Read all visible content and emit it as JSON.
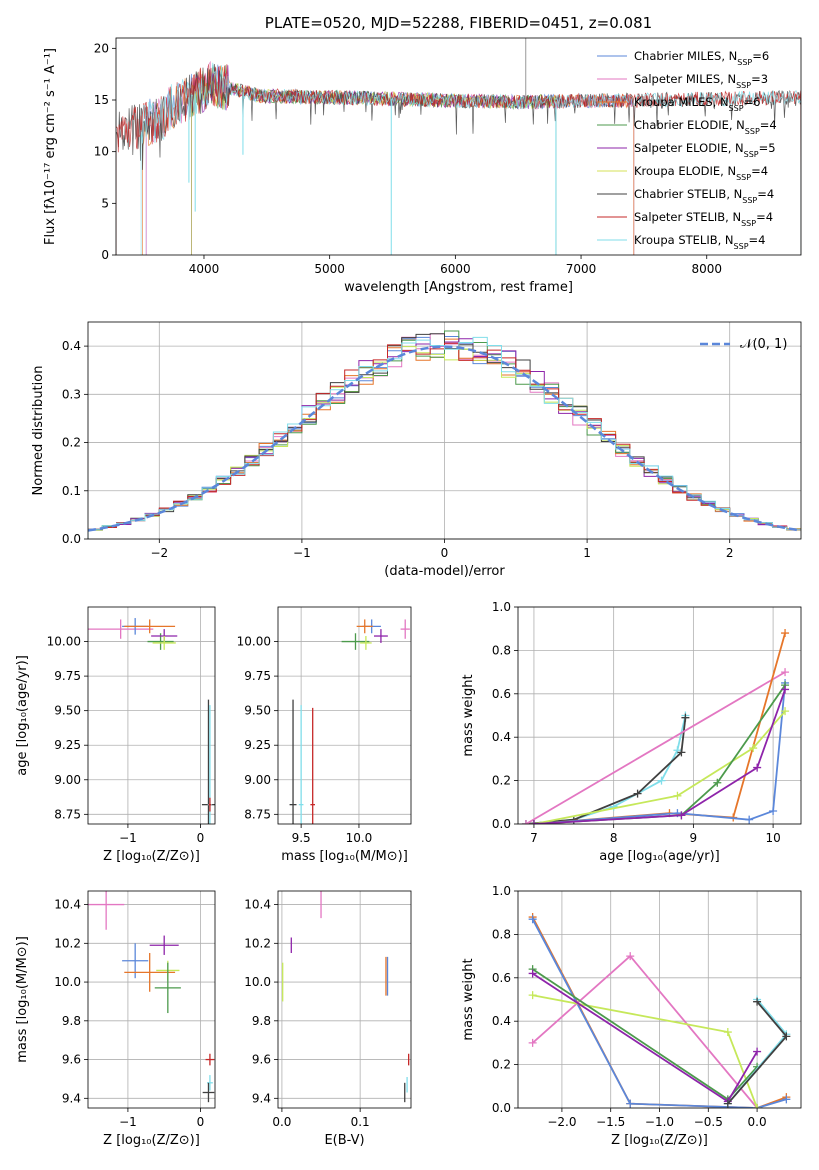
{
  "colors": {
    "chabrier_miles": "#5b87da",
    "salpeter_miles": "#e377c2",
    "kroupa_miles": "#2e8b57",
    "chabrier_elodie": "#4c9a4c",
    "salpeter_elodie": "#8e24aa",
    "kroupa_elodie": "#d4e157",
    "chabrier_stelib": "#404040",
    "salpeter_stelib": "#c62828",
    "kroupa_stelib": "#80deea",
    "orange": "#e6762a",
    "lime": "#c6e85a",
    "gaussian": "#5b87da"
  },
  "chart_data": [
    {
      "type": "line",
      "title": "PLATE=0520, MJD=52288, FIBERID=0451, z=0.081",
      "xlabel": "wavelength [Angstrom, rest frame]",
      "ylabel": "Flux [fλ10⁻¹⁷ erg cm⁻² s⁻¹ A⁻¹]",
      "xlim": [
        3300,
        8750
      ],
      "ylim": [
        0,
        21
      ],
      "xticks": [
        "4000",
        "5000",
        "6000",
        "7000",
        "8000"
      ],
      "yticks": [
        "0",
        "5",
        "10",
        "15",
        "20"
      ],
      "legend_position": "top-right",
      "series": [
        {
          "name": "Chabrier MILES, N_SSP=6",
          "key": "chabrier_miles",
          "range": [
            3540,
            7420
          ]
        },
        {
          "name": "Salpeter MILES, N_SSP=3",
          "key": "salpeter_miles",
          "range": [
            3540,
            7420
          ]
        },
        {
          "name": "Kroupa MILES, N_SSP=6",
          "key": "orange",
          "range": [
            3510,
            7420
          ]
        },
        {
          "name": "Chabrier ELODIE, N_SSP=4",
          "key": "chabrier_elodie",
          "range": [
            3900,
            6800
          ]
        },
        {
          "name": "Salpeter ELODIE, N_SSP=5",
          "key": "salpeter_elodie",
          "range": [
            3900,
            6800
          ]
        },
        {
          "name": "Kroupa ELODIE, N_SSP=4",
          "key": "kroupa_elodie",
          "range": [
            3900,
            6800
          ]
        },
        {
          "name": "Chabrier STELIB, N_SSP=4",
          "key": "chabrier_stelib",
          "range": [
            3200,
            8750
          ]
        },
        {
          "name": "Salpeter STELIB, N_SSP=4",
          "key": "salpeter_stelib",
          "range": [
            3300,
            8750
          ]
        },
        {
          "name": "Kroupa STELIB, N_SSP=4",
          "key": "kroupa_stelib",
          "range": [
            3500,
            8750
          ]
        }
      ]
    },
    {
      "type": "line",
      "xlabel": "(data-model)/error",
      "ylabel": "Normed distribution",
      "xlim": [
        -2.5,
        2.5
      ],
      "ylim": [
        0,
        0.45
      ],
      "xticks": [
        "−2",
        "−1",
        "0",
        "1",
        "2"
      ],
      "yticks": [
        "0.0",
        "0.1",
        "0.2",
        "0.3",
        "0.4"
      ],
      "grid": true,
      "legend_position": "top-right",
      "gaussian_label": "𝒩(0, 1)"
    },
    {
      "type": "scatter",
      "xlabel": "Z [log₁₀(Z/Z⊙)]",
      "ylabel": "age  [log₁₀(age/yr)]",
      "xlim": [
        -1.55,
        0.2
      ],
      "ylim": [
        8.68,
        10.25
      ],
      "xticks": [
        "−1",
        "0"
      ],
      "yticks": [
        "8.75",
        "9.00",
        "9.25",
        "9.50",
        "9.75",
        "10.00"
      ],
      "grid": true,
      "points": [
        {
          "key": "salpeter_miles",
          "x": -1.1,
          "y": 10.09,
          "xerr": 0.45,
          "yerr": 0.07
        },
        {
          "key": "chabrier_miles",
          "x": -0.9,
          "y": 10.11,
          "xerr": 0.18,
          "yerr": 0.06
        },
        {
          "key": "orange",
          "x": -0.7,
          "y": 10.11,
          "xerr": 0.35,
          "yerr": 0.05
        },
        {
          "key": "chabrier_elodie",
          "x": -0.55,
          "y": 10.0,
          "xerr": 0.18,
          "yerr": 0.06
        },
        {
          "key": "salpeter_elodie",
          "x": -0.5,
          "y": 10.04,
          "xerr": 0.18,
          "yerr": 0.05
        },
        {
          "key": "lime",
          "x": -0.5,
          "y": 9.99,
          "xerr": 0.16,
          "yerr": 0.05
        },
        {
          "key": "chabrier_stelib",
          "x": 0.11,
          "y": 8.82,
          "xerr": 0.09,
          "yerr": 0.76
        },
        {
          "key": "kroupa_stelib",
          "x": 0.13,
          "y": 8.82,
          "xerr": 0.03,
          "yerr": 0.72
        },
        {
          "key": "salpeter_stelib",
          "x": 0.13,
          "y": 8.82,
          "xerr": 0.02,
          "yerr": 0.05
        }
      ]
    },
    {
      "type": "scatter",
      "xlabel": "mass [log₁₀(M/M⊙)]",
      "ylabel": "",
      "xlim": [
        9.3,
        10.45
      ],
      "ylim": [
        8.68,
        10.25
      ],
      "xticks": [
        "9.5",
        "10.0"
      ],
      "yticks": [
        "8.75",
        "9.00",
        "9.25",
        "9.50",
        "9.75",
        "10.00"
      ],
      "grid": true,
      "points": [
        {
          "key": "salpeter_miles",
          "x": 10.4,
          "y": 10.09,
          "xerr": 0.04,
          "yerr": 0.07
        },
        {
          "key": "chabrier_miles",
          "x": 10.11,
          "y": 10.11,
          "xerr": 0.08,
          "yerr": 0.05
        },
        {
          "key": "orange",
          "x": 10.05,
          "y": 10.11,
          "xerr": 0.07,
          "yerr": 0.05
        },
        {
          "key": "chabrier_elodie",
          "x": 9.97,
          "y": 10.0,
          "xerr": 0.12,
          "yerr": 0.06
        },
        {
          "key": "salpeter_elodie",
          "x": 10.19,
          "y": 10.04,
          "xerr": 0.06,
          "yerr": 0.05
        },
        {
          "key": "lime",
          "x": 10.06,
          "y": 9.99,
          "xerr": 0.05,
          "yerr": 0.05
        },
        {
          "key": "chabrier_stelib",
          "x": 9.43,
          "y": 8.82,
          "xerr": 0.03,
          "yerr": 0.76
        },
        {
          "key": "kroupa_stelib",
          "x": 9.5,
          "y": 8.82,
          "xerr": 0.02,
          "yerr": 0.72
        },
        {
          "key": "salpeter_stelib",
          "x": 9.6,
          "y": 8.82,
          "xerr": 0.02,
          "yerr": 0.7
        }
      ]
    },
    {
      "type": "line",
      "xlabel": "age  [log₁₀(age/yr)]",
      "ylabel": "mass weight",
      "xlim": [
        6.8,
        10.35
      ],
      "ylim": [
        0,
        1.0
      ],
      "xticks": [
        "7",
        "8",
        "9",
        "10"
      ],
      "yticks": [
        "0.0",
        "0.2",
        "0.4",
        "0.6",
        "0.8",
        "1.0"
      ],
      "grid": true,
      "series": [
        {
          "key": "kroupa_stelib",
          "x": [
            6.9,
            7.5,
            8.0,
            8.6,
            8.8,
            8.9
          ],
          "y": [
            0.0,
            0.02,
            0.08,
            0.2,
            0.34,
            0.5
          ]
        },
        {
          "key": "chabrier_stelib",
          "x": [
            6.9,
            7.5,
            8.3,
            8.85,
            8.9
          ],
          "y": [
            0.0,
            0.02,
            0.14,
            0.33,
            0.49
          ]
        },
        {
          "key": "salpeter_miles",
          "x": [
            6.9,
            10.15
          ],
          "y": [
            0.0,
            0.7
          ]
        },
        {
          "key": "orange",
          "x": [
            7.0,
            8.7,
            9.5,
            10.15
          ],
          "y": [
            0.0,
            0.05,
            0.03,
            0.88
          ]
        },
        {
          "key": "chabrier_miles",
          "x": [
            7.0,
            8.8,
            9.7,
            10.0,
            10.15
          ],
          "y": [
            0.0,
            0.05,
            0.02,
            0.06,
            0.65
          ]
        },
        {
          "key": "lime",
          "x": [
            7.0,
            8.8,
            9.75,
            10.15
          ],
          "y": [
            0.0,
            0.13,
            0.35,
            0.52
          ]
        },
        {
          "key": "chabrier_elodie",
          "x": [
            7.0,
            8.85,
            9.3,
            10.15
          ],
          "y": [
            0.0,
            0.04,
            0.19,
            0.64
          ]
        },
        {
          "key": "salpeter_elodie",
          "x": [
            7.0,
            8.85,
            9.8,
            10.15
          ],
          "y": [
            0.0,
            0.04,
            0.26,
            0.62
          ]
        }
      ]
    },
    {
      "type": "scatter",
      "xlabel": "Z [log₁₀(Z/Z⊙)]",
      "ylabel": "mass [log₁₀(M/M⊙)]",
      "xlim": [
        -1.55,
        0.2
      ],
      "ylim": [
        9.35,
        10.47
      ],
      "xticks": [
        "−1",
        "0"
      ],
      "yticks": [
        "9.4",
        "9.6",
        "9.8",
        "10.0",
        "10.2",
        "10.4"
      ],
      "grid": true,
      "points": [
        {
          "key": "salpeter_miles",
          "x": -1.3,
          "y": 10.4,
          "xerr": 0.25,
          "yerr": 0.13
        },
        {
          "key": "chabrier_miles",
          "x": -0.9,
          "y": 10.11,
          "xerr": 0.18,
          "yerr": 0.09
        },
        {
          "key": "orange",
          "x": -0.7,
          "y": 10.05,
          "xerr": 0.35,
          "yerr": 0.1
        },
        {
          "key": "salpeter_elodie",
          "x": -0.5,
          "y": 10.19,
          "xerr": 0.2,
          "yerr": 0.05
        },
        {
          "key": "lime",
          "x": -0.45,
          "y": 10.06,
          "xerr": 0.16,
          "yerr": 0.05
        },
        {
          "key": "chabrier_elodie",
          "x": -0.45,
          "y": 9.97,
          "xerr": 0.18,
          "yerr": 0.13
        },
        {
          "key": "salpeter_stelib",
          "x": 0.13,
          "y": 9.6,
          "xerr": 0.06,
          "yerr": 0.03
        },
        {
          "key": "kroupa_stelib",
          "x": 0.13,
          "y": 9.48,
          "xerr": 0.04,
          "yerr": 0.04
        },
        {
          "key": "chabrier_stelib",
          "x": 0.11,
          "y": 9.43,
          "xerr": 0.08,
          "yerr": 0.05
        }
      ]
    },
    {
      "type": "scatter",
      "xlabel": "E(B-V)",
      "ylabel": "",
      "xlim": [
        -0.005,
        0.165
      ],
      "ylim": [
        9.35,
        10.47
      ],
      "xticks": [
        "0.0",
        "0.1"
      ],
      "yticks": [
        "9.4",
        "9.6",
        "9.8",
        "10.0",
        "10.2",
        "10.4"
      ],
      "grid": true,
      "points": [
        {
          "key": "salpeter_miles",
          "x": 0.05,
          "y": 10.4,
          "xerr": 0,
          "yerr": 0.07
        },
        {
          "key": "salpeter_elodie",
          "x": 0.012,
          "y": 10.19,
          "xerr": 0,
          "yerr": 0.04
        },
        {
          "key": "lime",
          "x": 0.001,
          "y": 10.0,
          "xerr": 0,
          "yerr": 0.1
        },
        {
          "key": "orange",
          "x": 0.133,
          "y": 10.03,
          "xerr": 0,
          "yerr": 0.1
        },
        {
          "key": "chabrier_miles",
          "x": 0.135,
          "y": 10.03,
          "xerr": 0,
          "yerr": 0.1
        },
        {
          "key": "salpeter_stelib",
          "x": 0.162,
          "y": 9.6,
          "xerr": 0,
          "yerr": 0.03
        },
        {
          "key": "kroupa_stelib",
          "x": 0.16,
          "y": 9.47,
          "xerr": 0,
          "yerr": 0.04
        },
        {
          "key": "chabrier_stelib",
          "x": 0.157,
          "y": 9.43,
          "xerr": 0,
          "yerr": 0.05
        }
      ]
    },
    {
      "type": "line",
      "xlabel": "Z [log₁₀(Z/Z⊙)]",
      "ylabel": "mass weight",
      "xlim": [
        -2.45,
        0.45
      ],
      "ylim": [
        0,
        1.0
      ],
      "xticks": [
        "−2.0",
        "−1.5",
        "−1.0",
        "−0.5",
        "0.0"
      ],
      "yticks": [
        "0.0",
        "0.2",
        "0.4",
        "0.6",
        "0.8",
        "1.0"
      ],
      "grid": true,
      "series": [
        {
          "key": "orange",
          "x": [
            -2.3,
            -1.3,
            0.0,
            0.3
          ],
          "y": [
            0.88,
            0.02,
            0.0,
            0.05
          ]
        },
        {
          "key": "chabrier_miles",
          "x": [
            -2.3,
            -1.3,
            0.0,
            0.3
          ],
          "y": [
            0.87,
            0.02,
            0.0,
            0.04
          ]
        },
        {
          "key": "salpeter_miles",
          "x": [
            -2.3,
            -1.3,
            0.0
          ],
          "y": [
            0.3,
            0.7,
            0.0
          ]
        },
        {
          "key": "lime",
          "x": [
            -2.3,
            -0.3,
            0.0
          ],
          "y": [
            0.52,
            0.35,
            0.0
          ]
        },
        {
          "key": "chabrier_elodie",
          "x": [
            -2.3,
            -0.3,
            0.0
          ],
          "y": [
            0.64,
            0.04,
            0.19
          ]
        },
        {
          "key": "salpeter_elodie",
          "x": [
            -2.3,
            -0.3,
            0.0
          ],
          "y": [
            0.62,
            0.03,
            0.26
          ]
        },
        {
          "key": "kroupa_stelib",
          "x": [
            0.0,
            0.3,
            -0.3
          ],
          "y": [
            0.5,
            0.34,
            0.02
          ]
        },
        {
          "key": "chabrier_stelib",
          "x": [
            0.0,
            0.3,
            -0.3
          ],
          "y": [
            0.49,
            0.33,
            0.02
          ]
        }
      ]
    }
  ]
}
